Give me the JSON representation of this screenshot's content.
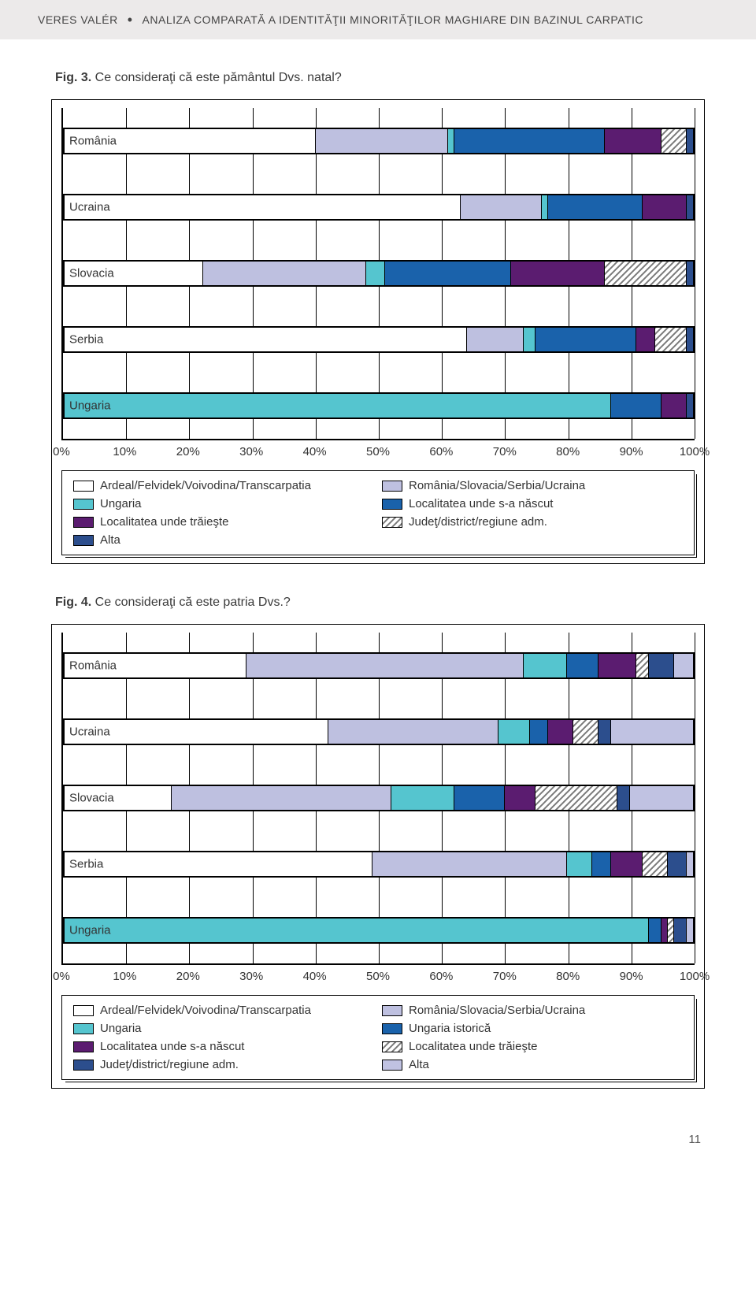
{
  "header": {
    "author": "VERES VALÉR",
    "title": "ANALIZA COMPARATĂ A IDENTITĂŢII MINORITĂŢILOR MAGHIARE DIN BAZINUL CARPATIC"
  },
  "page_number": "11",
  "fig3": {
    "caption_bold": "Fig. 3.",
    "caption_rest": " Ce consideraţi că este pământul Dvs. natal?",
    "xaxis": {
      "ticks": [
        "0%",
        "10%",
        "20%",
        "30%",
        "40%",
        "50%",
        "60%",
        "70%",
        "80%",
        "90%",
        "100%"
      ],
      "min": 0,
      "max": 100
    },
    "palette": {
      "cat0": "#ffffff",
      "cat1": "#bec0e0",
      "cat2": "#55c5cf",
      "cat3": "#1a62ab",
      "cat4": "#5b1c70",
      "cat5": "hatch",
      "cat6": "#2c4e8d"
    },
    "categories": [
      {
        "label": "România",
        "segments": [
          {
            "key": "cat0",
            "value": 40
          },
          {
            "key": "cat1",
            "value": 21
          },
          {
            "key": "cat2",
            "value": 1
          },
          {
            "key": "cat3",
            "value": 24
          },
          {
            "key": "cat4",
            "value": 9
          },
          {
            "key": "cat5",
            "value": 4
          },
          {
            "key": "cat6",
            "value": 1
          }
        ]
      },
      {
        "label": "Ucraina",
        "segments": [
          {
            "key": "cat0",
            "value": 63
          },
          {
            "key": "cat1",
            "value": 13
          },
          {
            "key": "cat2",
            "value": 1
          },
          {
            "key": "cat3",
            "value": 15
          },
          {
            "key": "cat4",
            "value": 7
          },
          {
            "key": "cat6",
            "value": 1
          }
        ]
      },
      {
        "label": "Slovacia",
        "segments": [
          {
            "key": "cat0",
            "value": 22
          },
          {
            "key": "cat1",
            "value": 26
          },
          {
            "key": "cat2",
            "value": 3
          },
          {
            "key": "cat3",
            "value": 20
          },
          {
            "key": "cat4",
            "value": 15
          },
          {
            "key": "cat5",
            "value": 13
          },
          {
            "key": "cat6",
            "value": 1
          }
        ]
      },
      {
        "label": "Serbia",
        "segments": [
          {
            "key": "cat0",
            "value": 64
          },
          {
            "key": "cat1",
            "value": 9
          },
          {
            "key": "cat2",
            "value": 2
          },
          {
            "key": "cat3",
            "value": 16
          },
          {
            "key": "cat4",
            "value": 3
          },
          {
            "key": "cat5",
            "value": 5
          },
          {
            "key": "cat6",
            "value": 1
          }
        ]
      },
      {
        "label": "Ungaria",
        "segments": [
          {
            "key": "cat2",
            "value": 87
          },
          {
            "key": "cat3",
            "value": 8
          },
          {
            "key": "cat4",
            "value": 4
          },
          {
            "key": "cat6",
            "value": 1
          }
        ]
      }
    ],
    "legend_pairs": [
      [
        "cat0",
        "Ardeal/Felvidek/Voivodina/Transcarpatia"
      ],
      [
        "cat1",
        "România/Slovacia/Serbia/Ucraina"
      ],
      [
        "cat2",
        "Ungaria"
      ],
      [
        "cat3",
        "Localitatea unde s-a născut"
      ],
      [
        "cat4",
        "Localitatea unde trăieşte"
      ],
      [
        "cat5",
        "Judeţ/district/regiune adm."
      ],
      [
        "cat6",
        "Alta"
      ]
    ]
  },
  "fig4": {
    "caption_bold": "Fig. 4.",
    "caption_rest": " Ce consideraţi că este patria Dvs.?",
    "xaxis": {
      "ticks": [
        "0%",
        "10%",
        "20%",
        "30%",
        "40%",
        "50%",
        "60%",
        "70%",
        "80%",
        "90%",
        "100%"
      ],
      "min": 0,
      "max": 100
    },
    "palette": {
      "cat0": "#ffffff",
      "cat1": "#bec0e0",
      "cat2": "#55c5cf",
      "cat3": "#1a62ab",
      "cat4": "#5b1c70",
      "cat5": "hatch",
      "cat6": "#2c4e8d",
      "cat7": "#c0c2e2"
    },
    "categories": [
      {
        "label": "România",
        "segments": [
          {
            "key": "cat0",
            "value": 29
          },
          {
            "key": "cat1",
            "value": 44
          },
          {
            "key": "cat2",
            "value": 7
          },
          {
            "key": "cat3",
            "value": 5
          },
          {
            "key": "cat4",
            "value": 6
          },
          {
            "key": "cat5",
            "value": 2
          },
          {
            "key": "cat6",
            "value": 4
          },
          {
            "key": "cat7",
            "value": 3
          }
        ]
      },
      {
        "label": "Ucraina",
        "segments": [
          {
            "key": "cat0",
            "value": 42
          },
          {
            "key": "cat1",
            "value": 27
          },
          {
            "key": "cat2",
            "value": 5
          },
          {
            "key": "cat3",
            "value": 3
          },
          {
            "key": "cat4",
            "value": 4
          },
          {
            "key": "cat5",
            "value": 4
          },
          {
            "key": "cat6",
            "value": 2
          },
          {
            "key": "cat7",
            "value": 13
          }
        ]
      },
      {
        "label": "Slovacia",
        "segments": [
          {
            "key": "cat0",
            "value": 17
          },
          {
            "key": "cat1",
            "value": 35
          },
          {
            "key": "cat2",
            "value": 10
          },
          {
            "key": "cat3",
            "value": 8
          },
          {
            "key": "cat4",
            "value": 5
          },
          {
            "key": "cat5",
            "value": 13
          },
          {
            "key": "cat6",
            "value": 2
          },
          {
            "key": "cat7",
            "value": 10
          }
        ]
      },
      {
        "label": "Serbia",
        "segments": [
          {
            "key": "cat0",
            "value": 49
          },
          {
            "key": "cat1",
            "value": 31
          },
          {
            "key": "cat2",
            "value": 4
          },
          {
            "key": "cat3",
            "value": 3
          },
          {
            "key": "cat4",
            "value": 5
          },
          {
            "key": "cat5",
            "value": 4
          },
          {
            "key": "cat6",
            "value": 3
          },
          {
            "key": "cat7",
            "value": 1
          }
        ]
      },
      {
        "label": "Ungaria",
        "segments": [
          {
            "key": "cat2",
            "value": 93
          },
          {
            "key": "cat3",
            "value": 2
          },
          {
            "key": "cat4",
            "value": 1
          },
          {
            "key": "cat5",
            "value": 1
          },
          {
            "key": "cat6",
            "value": 2
          },
          {
            "key": "cat7",
            "value": 1
          }
        ]
      }
    ],
    "legend_pairs": [
      [
        "cat0",
        "Ardeal/Felvidek/Voivodina/Transcarpatia"
      ],
      [
        "cat1",
        "România/Slovacia/Serbia/Ucraina"
      ],
      [
        "cat2",
        "Ungaria"
      ],
      [
        "cat3",
        "Ungaria istorică"
      ],
      [
        "cat4",
        "Localitatea unde s-a născut"
      ],
      [
        "cat5",
        "Localitatea unde trăieşte"
      ],
      [
        "cat6",
        "Judeţ/district/regiune adm."
      ],
      [
        "cat7",
        "Alta"
      ]
    ]
  }
}
